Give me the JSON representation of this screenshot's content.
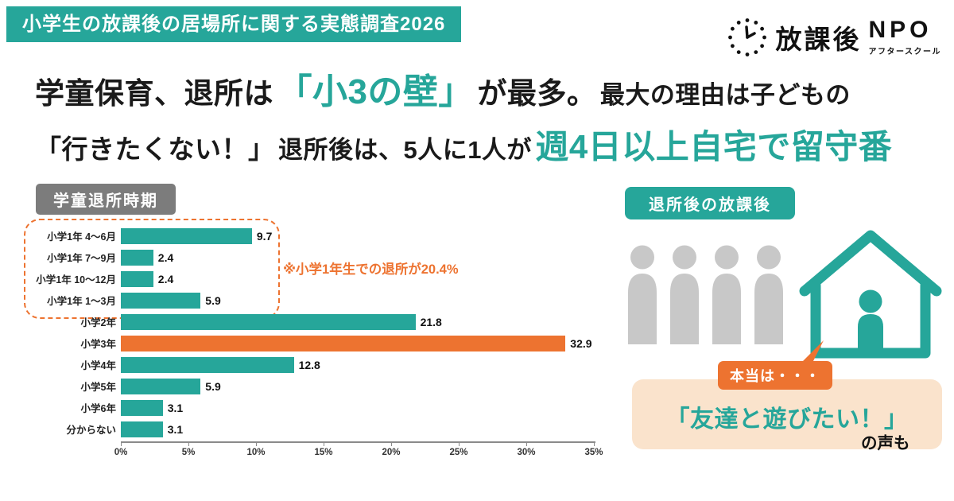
{
  "colors": {
    "teal": "#26A69A",
    "orange": "#ED7330",
    "light_orange": "#FAE3CC",
    "gray_badge": "#7C7C7C",
    "silhouette_gray": "#C8C8C8"
  },
  "banner": {
    "title": "小学生の放課後の居場所に関する実態調査2026"
  },
  "logo": {
    "main": "放課後",
    "npo": "NPO",
    "sub": "アフタースクール"
  },
  "headline": {
    "l1a": "学童保育、退所は",
    "l1b": "「小3の壁」",
    "l1c": "が最多。",
    "l1d": "最大の理由は子どもの",
    "l2a": "「行きたくない！」",
    "l2b": "退所後は、5人に1人が",
    "l2c": "週4日以上自宅で留守番"
  },
  "chart_data": {
    "type": "bar",
    "orientation": "horizontal",
    "title": "学童退所時期",
    "categories": [
      "小学1年 4〜6月",
      "小学1年 7〜9月",
      "小学1年 10〜12月",
      "小学1年 1〜3月",
      "小学2年",
      "小学3年",
      "小学4年",
      "小学5年",
      "小学6年",
      "分からない"
    ],
    "values": [
      9.7,
      2.4,
      2.4,
      5.9,
      21.8,
      32.9,
      12.8,
      5.9,
      3.1,
      3.1
    ],
    "unit": "%",
    "xlim": [
      0,
      35
    ],
    "x_ticks": [
      "0%",
      "5%",
      "10%",
      "15%",
      "20%",
      "25%",
      "30%",
      "35%"
    ],
    "bar_color": "#26A69A",
    "highlight_index": 5,
    "highlight_color": "#ED7330",
    "grouped_rows": [
      0,
      1,
      2,
      3
    ],
    "annotation": "※小学1年生での退所が20.4%",
    "grid": false,
    "legend": false
  },
  "right_panel": {
    "badge": "退所後の放課後",
    "bubble": "本当は・・・",
    "quote": "「友達と遊びたい！」",
    "quote_suffix": "の声も"
  }
}
